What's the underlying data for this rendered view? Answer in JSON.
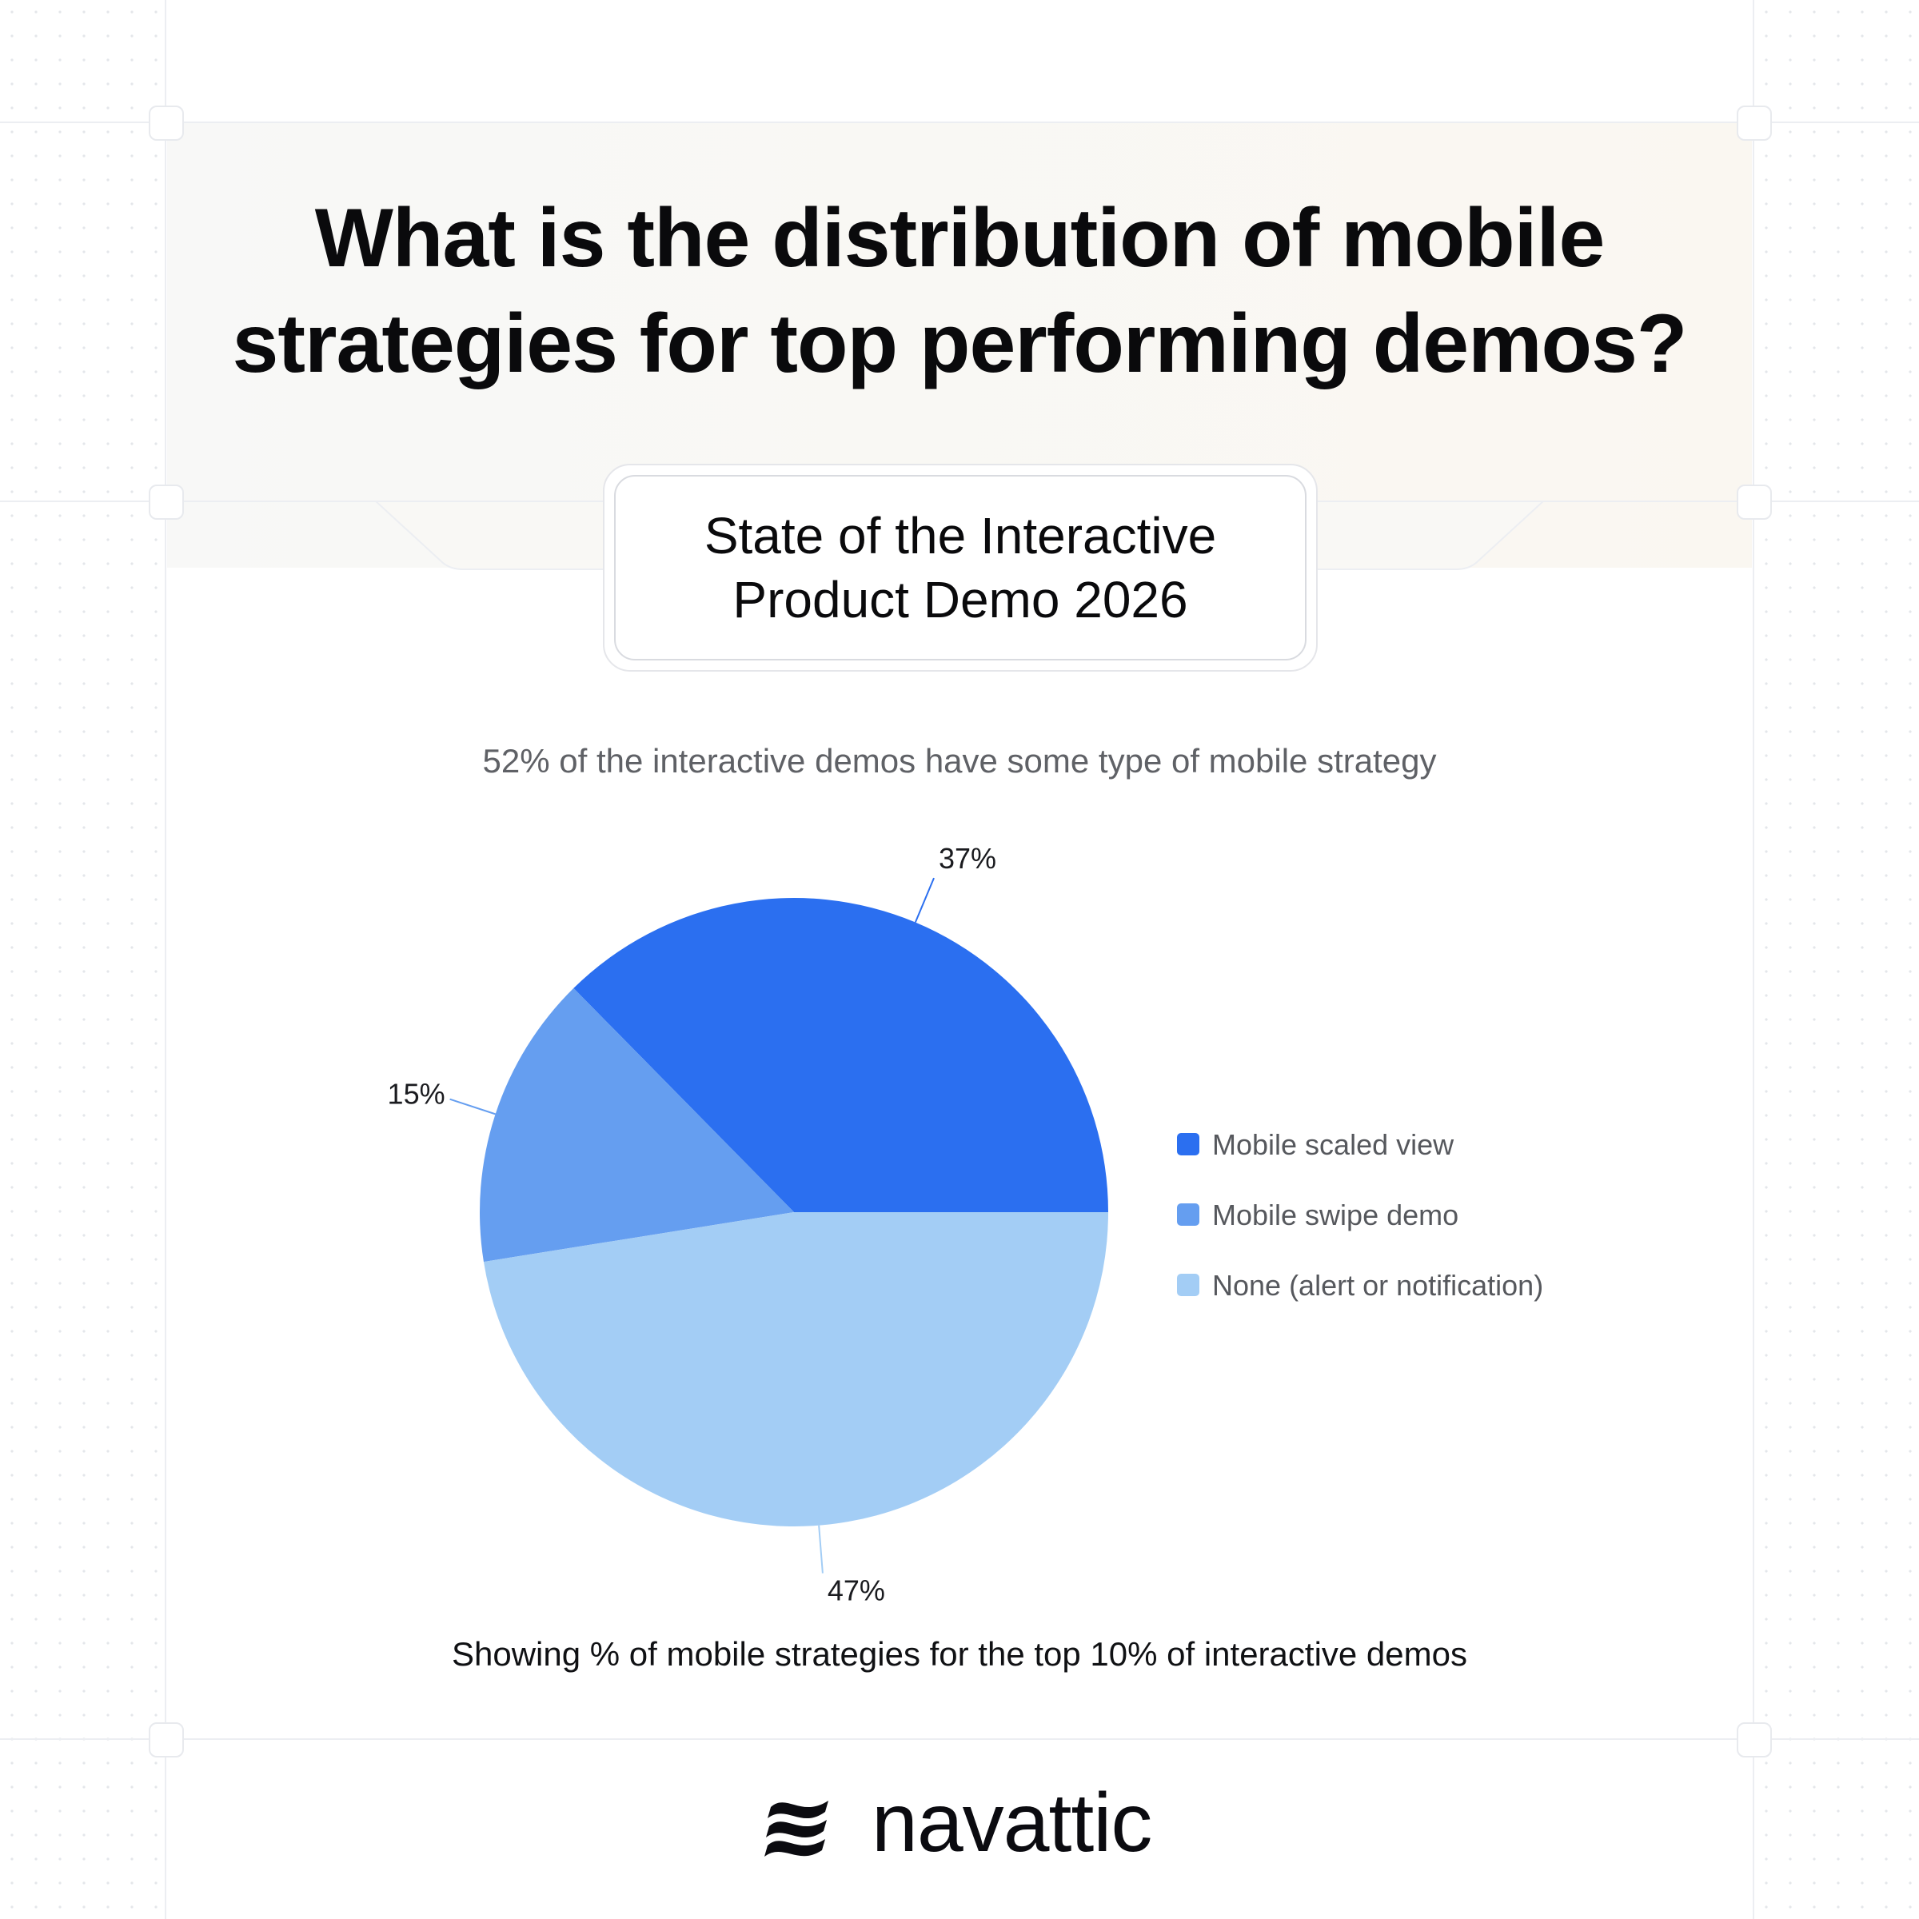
{
  "header": {
    "title": "What is the distribution of mobile strategies for top performing demos?",
    "report_badge": "State of the Interactive Product Demo 2026"
  },
  "subtitle": "52% of the interactive demos have some type of mobile strategy",
  "footnote": "Showing % of mobile strategies for the top 10% of interactive demos",
  "brand": {
    "name": "navattic",
    "logo_icon": "navattic-wave-icon"
  },
  "chart_data": {
    "type": "pie",
    "title": "",
    "categories": [
      "Mobile scaled view",
      "Mobile swipe demo",
      "None (alert or notification)"
    ],
    "values": [
      37,
      15,
      47
    ],
    "labels": [
      "37%",
      "15%",
      "47%"
    ],
    "colors": [
      "#2b6ff0",
      "#659ef0",
      "#a3cdf5"
    ],
    "legend_position": "right",
    "start_angle_deg": 0,
    "direction": "counterclockwise"
  }
}
